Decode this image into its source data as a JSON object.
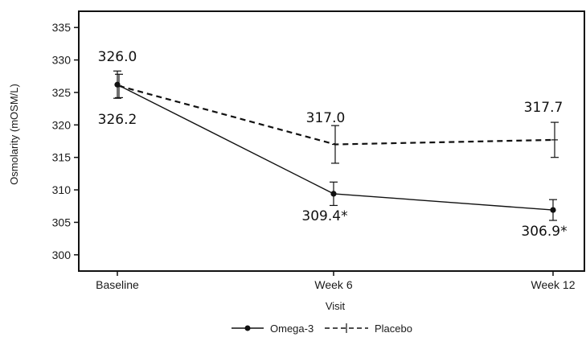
{
  "chart_data": {
    "type": "line",
    "title": "",
    "xlabel": "Visit",
    "ylabel": "Osmolarity (mOSM/L)",
    "categories": [
      "Baseline",
      "Week 6",
      "Week 12"
    ],
    "ylim": [
      297.5,
      337.5
    ],
    "yticks": [
      300,
      305,
      310,
      315,
      320,
      325,
      330,
      335
    ],
    "grid": false,
    "legend_position": "bottom",
    "series": [
      {
        "name": "Omega-3",
        "values": [
          326.2,
          309.4,
          306.9
        ],
        "error_low": [
          324.1,
          307.6,
          305.3
        ],
        "error_high": [
          328.3,
          311.2,
          308.5
        ],
        "labels": [
          "326.2",
          "309.4*",
          "306.9*"
        ],
        "line_style": "solid",
        "marker": "circle"
      },
      {
        "name": "Placebo",
        "values": [
          326.0,
          317.0,
          317.7
        ],
        "error_low": [
          324.2,
          314.1,
          315.0
        ],
        "error_high": [
          327.8,
          319.9,
          320.4
        ],
        "labels": [
          "326.0",
          "317.0",
          "317.7"
        ],
        "line_style": "dashed",
        "marker": "plus"
      }
    ]
  }
}
